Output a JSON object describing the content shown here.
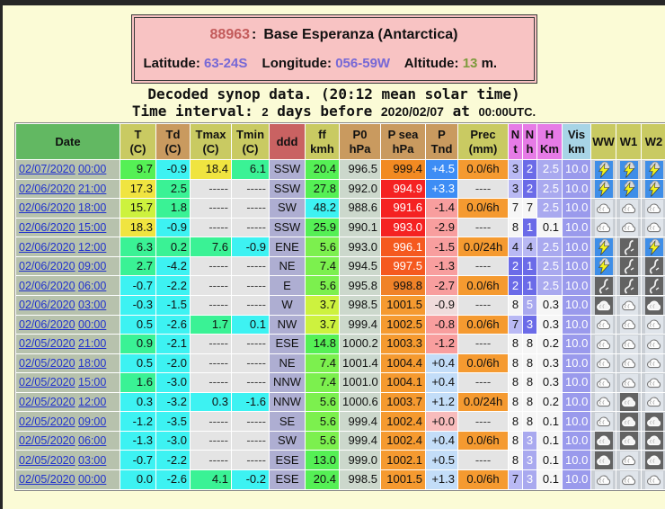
{
  "station": {
    "id": "88963",
    "sep": ":",
    "name": "Base Esperanza (Antarctica)",
    "lat_label": "Latitude:",
    "lat": "63-24S",
    "lon_label": "Longitude:",
    "lon": "056-59W",
    "alt_label": "Altitude:",
    "alt": "13",
    "alt_unit": "m."
  },
  "page": {
    "subtitle1": "Decoded synop data. (20:12 mean solar time)",
    "interval_label": "Time interval:",
    "interval_value": "2",
    "interval_unit": "days before",
    "ref_date": "2020/02/07",
    "at_label": "at",
    "ref_time": "00:00",
    "utc_label": "UTC."
  },
  "colors": {
    "yellow": "#f0e440",
    "greenyellow": "#cdf23e",
    "green": "#55f055",
    "green2": "#7cf04e",
    "spring": "#3af295",
    "cyan": "#3df2f2",
    "gray": "#e4e4e4",
    "orange": "#f59a30",
    "orange_deep": "#f28a22",
    "orange_mid": "#f08228",
    "orangered": "#f5591f",
    "red": "#f52222",
    "blue": "#3d8df5",
    "lightblue": "#c3ddf8",
    "salmon": "#f89e9e",
    "palepink": "#f0dcdc",
    "pink": "#f8bcbc",
    "peri": "#b9b9f4",
    "peri_w": "#a9a9ef",
    "medblue": "#6b6be8",
    "white": "#f6f6f6",
    "vis": "#9a9aec",
    "datebg": "#b7c2ad",
    "dddbg": "#aeaed2",
    "p0bg": "#ccd8cc",
    "iconbg": "#c9ced4",
    "link": "#2233cc"
  },
  "white_text_keys": [
    "red",
    "orangered",
    "blue",
    "medblue",
    "peri_w",
    "vis"
  ],
  "table": {
    "columns": [
      {
        "id": "date",
        "lines": [
          "Date"
        ],
        "bg": "#62b862"
      },
      {
        "id": "t",
        "lines": [
          "T",
          "(C)"
        ],
        "bg": "#c9ca62"
      },
      {
        "id": "td",
        "lines": [
          "Td",
          "(C)"
        ],
        "bg": "#c99a5f"
      },
      {
        "id": "tmax",
        "lines": [
          "Tmax",
          "(C)"
        ],
        "bg": "#c9ca62"
      },
      {
        "id": "tmin",
        "lines": [
          "Tmin",
          "(C)"
        ],
        "bg": "#c9ca62"
      },
      {
        "id": "ddd",
        "lines": [
          "ddd"
        ],
        "bg": "#c96262"
      },
      {
        "id": "ff",
        "lines": [
          "ff",
          "kmh"
        ],
        "bg": "#c9ca62"
      },
      {
        "id": "p0",
        "lines": [
          "P0",
          "hPa"
        ],
        "bg": "#c99a5f"
      },
      {
        "id": "psea",
        "lines": [
          "P sea",
          "hPa"
        ],
        "bg": "#c99a5f"
      },
      {
        "id": "ptnd",
        "lines": [
          "P",
          "Tnd"
        ],
        "bg": "#c99a5f"
      },
      {
        "id": "prec",
        "lines": [
          "Prec",
          "(mm)"
        ],
        "bg": "#c9ca62"
      },
      {
        "id": "n",
        "lines": [
          "N",
          "t"
        ],
        "bg": "#e67be6"
      },
      {
        "id": "nh",
        "lines": [
          "N",
          "h"
        ],
        "bg": "#e67be6"
      },
      {
        "id": "h",
        "lines": [
          "H",
          "Km"
        ],
        "bg": "#e67be6"
      },
      {
        "id": "vis",
        "lines": [
          "Vis",
          "km"
        ],
        "bg": "#a8d4e6"
      },
      {
        "id": "ww",
        "lines": [
          "WW"
        ],
        "bg": "#c9ca62"
      },
      {
        "id": "w1",
        "lines": [
          "W1"
        ],
        "bg": "#c9ca62"
      },
      {
        "id": "w2",
        "lines": [
          "W2"
        ],
        "bg": "#c9ca62"
      }
    ],
    "rows": [
      {
        "date": "02/07/2020",
        "time": "00:00",
        "t": [
          "9.7",
          "green"
        ],
        "td": [
          "-0.9",
          "cyan"
        ],
        "tmax": [
          "18.4",
          "yellow"
        ],
        "tmin": [
          "6.1",
          "spring"
        ],
        "ddd": "SSW",
        "ff": [
          "20.4",
          "green"
        ],
        "p0": "996.5",
        "psea": [
          "999.4",
          "orange_deep"
        ],
        "ptnd": [
          "+4.5",
          "blue"
        ],
        "prec": [
          "0.0/6h",
          "orange"
        ],
        "n": [
          "3",
          "peri"
        ],
        "nh": [
          "2",
          "medblue"
        ],
        "h": [
          "2.5",
          "peri_w"
        ],
        "vis": [
          "10.0",
          "vis"
        ],
        "ww": "thunder",
        "w1": "thunder",
        "w2": "thunder"
      },
      {
        "date": "02/06/2020",
        "time": "21:00",
        "t": [
          "17.3",
          "yellow"
        ],
        "td": [
          "2.5",
          "spring"
        ],
        "tmax": [
          "-----",
          "gray"
        ],
        "tmin": [
          "-----",
          "gray"
        ],
        "ddd": "SSW",
        "ff": [
          "27.8",
          "green"
        ],
        "p0": "992.0",
        "psea": [
          "994.9",
          "red"
        ],
        "ptnd": [
          "+3.3",
          "blue"
        ],
        "prec": [
          "----",
          "gray"
        ],
        "n": [
          "3",
          "peri"
        ],
        "nh": [
          "2",
          "medblue"
        ],
        "h": [
          "2.5",
          "peri_w"
        ],
        "vis": [
          "10.0",
          "vis"
        ],
        "ww": "thunder",
        "w1": "thunder",
        "w2": "thunder"
      },
      {
        "date": "02/06/2020",
        "time": "18:00",
        "t": [
          "15.7",
          "greenyellow"
        ],
        "td": [
          "1.8",
          "spring"
        ],
        "tmax": [
          "-----",
          "gray"
        ],
        "tmin": [
          "-----",
          "gray"
        ],
        "ddd": "SW",
        "ff": [
          "48.2",
          "cyan"
        ],
        "p0": "988.6",
        "psea": [
          "991.6",
          "red"
        ],
        "ptnd": [
          "-1.4",
          "salmon"
        ],
        "prec": [
          "0.0/6h",
          "orange"
        ],
        "n": [
          "7",
          "white"
        ],
        "nh": [
          "7",
          "white"
        ],
        "h": [
          "2.5",
          "peri_w"
        ],
        "vis": [
          "10.0",
          "vis"
        ],
        "ww": "cloud-light",
        "w1": "cloud-light",
        "w2": "cloud-light"
      },
      {
        "date": "02/06/2020",
        "time": "15:00",
        "t": [
          "18.3",
          "yellow"
        ],
        "td": [
          "-0.9",
          "cyan"
        ],
        "tmax": [
          "-----",
          "gray"
        ],
        "tmin": [
          "-----",
          "gray"
        ],
        "ddd": "SSW",
        "ff": [
          "25.9",
          "green"
        ],
        "p0": "990.1",
        "psea": [
          "993.0",
          "red"
        ],
        "ptnd": [
          "-2.9",
          "salmon"
        ],
        "prec": [
          "----",
          "gray"
        ],
        "n": [
          "8",
          "white"
        ],
        "nh": [
          "1",
          "medblue"
        ],
        "h": [
          "0.1",
          "white"
        ],
        "vis": [
          "10.0",
          "vis"
        ],
        "ww": "cloud-light",
        "w1": "cloud-light",
        "w2": "cloud-light"
      },
      {
        "date": "02/06/2020",
        "time": "12:00",
        "t": [
          "6.3",
          "spring"
        ],
        "td": [
          "0.2",
          "spring"
        ],
        "tmax": [
          "7.6",
          "spring"
        ],
        "tmin": [
          "-0.9",
          "cyan"
        ],
        "ddd": "ENE",
        "ff": [
          "5.6",
          "green2"
        ],
        "p0": "993.0",
        "psea": [
          "996.1",
          "orangered"
        ],
        "ptnd": [
          "-1.5",
          "salmon"
        ],
        "prec": [
          "0.0/24h",
          "orange"
        ],
        "n": [
          "4",
          "peri"
        ],
        "nh": [
          "4",
          "peri"
        ],
        "h": [
          "2.5",
          "peri_w"
        ],
        "vis": [
          "10.0",
          "vis"
        ],
        "ww": "thunder",
        "w1": "squall",
        "w2": "thunder"
      },
      {
        "date": "02/06/2020",
        "time": "09:00",
        "t": [
          "2.7",
          "spring"
        ],
        "td": [
          "-4.2",
          "cyan"
        ],
        "tmax": [
          "-----",
          "gray"
        ],
        "tmin": [
          "-----",
          "gray"
        ],
        "ddd": "NE",
        "ff": [
          "7.4",
          "green2"
        ],
        "p0": "994.5",
        "psea": [
          "997.5",
          "orangered"
        ],
        "ptnd": [
          "-1.3",
          "salmon"
        ],
        "prec": [
          "----",
          "gray"
        ],
        "n": [
          "2",
          "medblue"
        ],
        "nh": [
          "1",
          "medblue"
        ],
        "h": [
          "2.5",
          "peri_w"
        ],
        "vis": [
          "10.0",
          "vis"
        ],
        "ww": "thunder",
        "w1": "squall",
        "w2": "squall"
      },
      {
        "date": "02/06/2020",
        "time": "06:00",
        "t": [
          "-0.7",
          "cyan"
        ],
        "td": [
          "-2.2",
          "cyan"
        ],
        "tmax": [
          "-----",
          "gray"
        ],
        "tmin": [
          "-----",
          "gray"
        ],
        "ddd": "E",
        "ff": [
          "5.6",
          "green2"
        ],
        "p0": "995.8",
        "psea": [
          "998.8",
          "orange_mid"
        ],
        "ptnd": [
          "-2.7",
          "salmon"
        ],
        "prec": [
          "0.0/6h",
          "orange"
        ],
        "n": [
          "2",
          "medblue"
        ],
        "nh": [
          "1",
          "medblue"
        ],
        "h": [
          "2.5",
          "peri_w"
        ],
        "vis": [
          "10.0",
          "vis"
        ],
        "ww": "squall",
        "w1": "squall",
        "w2": "squall"
      },
      {
        "date": "02/06/2020",
        "time": "03:00",
        "t": [
          "-0.3",
          "cyan"
        ],
        "td": [
          "-1.5",
          "cyan"
        ],
        "tmax": [
          "-----",
          "gray"
        ],
        "tmin": [
          "-----",
          "gray"
        ],
        "ddd": "W",
        "ff": [
          "3.7",
          "greenyellow"
        ],
        "p0": "998.5",
        "psea": [
          "1001.5",
          "orange"
        ],
        "ptnd": [
          "-0.9",
          "palepink"
        ],
        "prec": [
          "----",
          "gray"
        ],
        "n": [
          "8",
          "white"
        ],
        "nh": [
          "5",
          "peri_w"
        ],
        "h": [
          "0.3",
          "white"
        ],
        "vis": [
          "10.0",
          "vis"
        ],
        "ww": "cloud-dark",
        "w1": "cloud-light",
        "w2": "cloud-dark"
      },
      {
        "date": "02/06/2020",
        "time": "00:00",
        "t": [
          "0.5",
          "cyan"
        ],
        "td": [
          "-2.6",
          "cyan"
        ],
        "tmax": [
          "1.7",
          "spring"
        ],
        "tmin": [
          "0.1",
          "cyan"
        ],
        "ddd": "NW",
        "ff": [
          "3.7",
          "greenyellow"
        ],
        "p0": "999.4",
        "psea": [
          "1002.5",
          "orange"
        ],
        "ptnd": [
          "-0.8",
          "salmon"
        ],
        "prec": [
          "0.0/6h",
          "orange"
        ],
        "n": [
          "7",
          "peri"
        ],
        "nh": [
          "3",
          "medblue"
        ],
        "h": [
          "0.3",
          "white"
        ],
        "vis": [
          "10.0",
          "vis"
        ],
        "ww": "cloud-light",
        "w1": "cloud-light",
        "w2": "cloud-light"
      },
      {
        "date": "02/05/2020",
        "time": "21:00",
        "t": [
          "0.9",
          "spring"
        ],
        "td": [
          "-2.1",
          "cyan"
        ],
        "tmax": [
          "-----",
          "gray"
        ],
        "tmin": [
          "-----",
          "gray"
        ],
        "ddd": "ESE",
        "ff": [
          "14.8",
          "green"
        ],
        "p0": "1000.2",
        "psea": [
          "1003.3",
          "orange"
        ],
        "ptnd": [
          "-1.2",
          "salmon"
        ],
        "prec": [
          "----",
          "gray"
        ],
        "n": [
          "8",
          "white"
        ],
        "nh": [
          "8",
          "white"
        ],
        "h": [
          "0.2",
          "white"
        ],
        "vis": [
          "10.0",
          "vis"
        ],
        "ww": "cloud-light",
        "w1": "cloud-light",
        "w2": "cloud-light"
      },
      {
        "date": "02/05/2020",
        "time": "18:00",
        "t": [
          "0.5",
          "cyan"
        ],
        "td": [
          "-2.0",
          "cyan"
        ],
        "tmax": [
          "-----",
          "gray"
        ],
        "tmin": [
          "-----",
          "gray"
        ],
        "ddd": "NE",
        "ff": [
          "7.4",
          "green2"
        ],
        "p0": "1001.4",
        "psea": [
          "1004.4",
          "orange"
        ],
        "ptnd": [
          "+0.4",
          "lightblue"
        ],
        "prec": [
          "0.0/6h",
          "orange"
        ],
        "n": [
          "8",
          "white"
        ],
        "nh": [
          "8",
          "white"
        ],
        "h": [
          "0.3",
          "white"
        ],
        "vis": [
          "10.0",
          "vis"
        ],
        "ww": "cloud-light",
        "w1": "cloud-light",
        "w2": "cloud-light"
      },
      {
        "date": "02/05/2020",
        "time": "15:00",
        "t": [
          "1.6",
          "spring"
        ],
        "td": [
          "-3.0",
          "cyan"
        ],
        "tmax": [
          "-----",
          "gray"
        ],
        "tmin": [
          "-----",
          "gray"
        ],
        "ddd": "NNW",
        "ff": [
          "7.4",
          "green2"
        ],
        "p0": "1001.0",
        "psea": [
          "1004.1",
          "orange"
        ],
        "ptnd": [
          "+0.4",
          "lightblue"
        ],
        "prec": [
          "----",
          "gray"
        ],
        "n": [
          "8",
          "white"
        ],
        "nh": [
          "8",
          "white"
        ],
        "h": [
          "0.3",
          "white"
        ],
        "vis": [
          "10.0",
          "vis"
        ],
        "ww": "cloud-light",
        "w1": "cloud-light",
        "w2": "cloud-light"
      },
      {
        "date": "02/05/2020",
        "time": "12:00",
        "t": [
          "0.3",
          "cyan"
        ],
        "td": [
          "-3.2",
          "cyan"
        ],
        "tmax": [
          "0.3",
          "cyan"
        ],
        "tmin": [
          "-1.6",
          "cyan"
        ],
        "ddd": "NNW",
        "ff": [
          "5.6",
          "green2"
        ],
        "p0": "1000.6",
        "psea": [
          "1003.7",
          "orange"
        ],
        "ptnd": [
          "+1.2",
          "lightblue"
        ],
        "prec": [
          "0.0/24h",
          "orange"
        ],
        "n": [
          "8",
          "white"
        ],
        "nh": [
          "8",
          "white"
        ],
        "h": [
          "0.2",
          "white"
        ],
        "vis": [
          "10.0",
          "vis"
        ],
        "ww": "cloud-light",
        "w1": "cloud-dark",
        "w2": "cloud-light"
      },
      {
        "date": "02/05/2020",
        "time": "09:00",
        "t": [
          "-1.2",
          "cyan"
        ],
        "td": [
          "-3.5",
          "cyan"
        ],
        "tmax": [
          "-----",
          "gray"
        ],
        "tmin": [
          "-----",
          "gray"
        ],
        "ddd": "SE",
        "ff": [
          "5.6",
          "green2"
        ],
        "p0": "999.4",
        "psea": [
          "1002.4",
          "orange"
        ],
        "ptnd": [
          "+0.0",
          "pink"
        ],
        "prec": [
          "----",
          "gray"
        ],
        "n": [
          "8",
          "white"
        ],
        "nh": [
          "8",
          "white"
        ],
        "h": [
          "0.1",
          "white"
        ],
        "vis": [
          "10.0",
          "vis"
        ],
        "ww": "cloud-light",
        "w1": "cloud-dark",
        "w2": "cloud-dark"
      },
      {
        "date": "02/05/2020",
        "time": "06:00",
        "t": [
          "-1.3",
          "cyan"
        ],
        "td": [
          "-3.0",
          "cyan"
        ],
        "tmax": [
          "-----",
          "gray"
        ],
        "tmin": [
          "-----",
          "gray"
        ],
        "ddd": "SW",
        "ff": [
          "5.6",
          "green2"
        ],
        "p0": "999.4",
        "psea": [
          "1002.4",
          "orange"
        ],
        "ptnd": [
          "+0.4",
          "lightblue"
        ],
        "prec": [
          "0.0/6h",
          "orange"
        ],
        "n": [
          "8",
          "white"
        ],
        "nh": [
          "3",
          "peri_w"
        ],
        "h": [
          "0.1",
          "white"
        ],
        "vis": [
          "10.0",
          "vis"
        ],
        "ww": "cloud-dark",
        "w1": "cloud-dark",
        "w2": "cloud-dark"
      },
      {
        "date": "02/05/2020",
        "time": "03:00",
        "t": [
          "-0.7",
          "cyan"
        ],
        "td": [
          "-2.2",
          "cyan"
        ],
        "tmax": [
          "-----",
          "gray"
        ],
        "tmin": [
          "-----",
          "gray"
        ],
        "ddd": "ESE",
        "ff": [
          "13.0",
          "green"
        ],
        "p0": "999.0",
        "psea": [
          "1002.1",
          "orange"
        ],
        "ptnd": [
          "+0.5",
          "lightblue"
        ],
        "prec": [
          "----",
          "gray"
        ],
        "n": [
          "8",
          "white"
        ],
        "nh": [
          "3",
          "peri_w"
        ],
        "h": [
          "0.1",
          "white"
        ],
        "vis": [
          "10.0",
          "vis"
        ],
        "ww": "cloud-dark",
        "w1": "cloud-light",
        "w2": "cloud-dark"
      },
      {
        "date": "02/05/2020",
        "time": "00:00",
        "t": [
          "0.0",
          "cyan"
        ],
        "td": [
          "-2.6",
          "cyan"
        ],
        "tmax": [
          "4.1",
          "spring"
        ],
        "tmin": [
          "-0.2",
          "cyan"
        ],
        "ddd": "ESE",
        "ff": [
          "20.4",
          "green"
        ],
        "p0": "998.5",
        "psea": [
          "1001.5",
          "orange"
        ],
        "ptnd": [
          "+1.3",
          "lightblue"
        ],
        "prec": [
          "0.0/6h",
          "orange"
        ],
        "n": [
          "7",
          "peri"
        ],
        "nh": [
          "3",
          "peri_w"
        ],
        "h": [
          "0.1",
          "white"
        ],
        "vis": [
          "10.0",
          "vis"
        ],
        "ww": "cloud-light",
        "w1": "cloud-light",
        "w2": "cloud-light"
      }
    ]
  }
}
